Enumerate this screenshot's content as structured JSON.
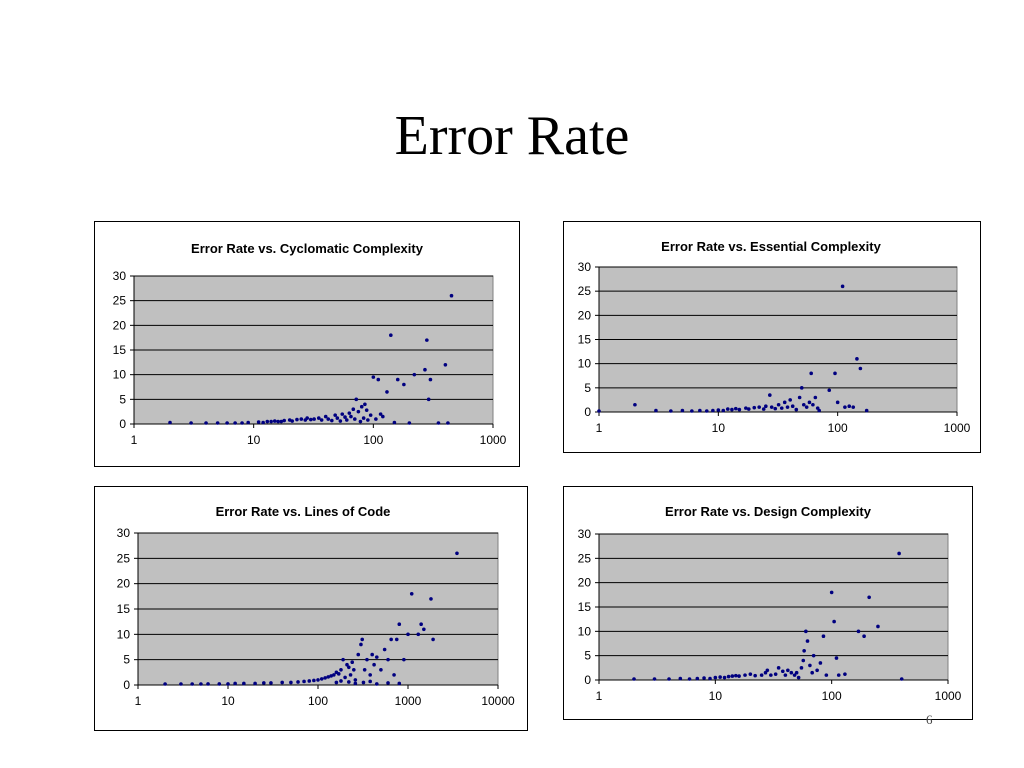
{
  "slide": {
    "title": "Error Rate",
    "page_number": "6"
  },
  "chart_data": [
    {
      "type": "scatter",
      "title": "Error Rate vs. Cyclomatic Complexity",
      "xlabel": "",
      "ylabel": "",
      "x_scale": "log",
      "xlim": [
        1,
        1000
      ],
      "ylim": [
        0,
        30
      ],
      "x_ticks": [
        1,
        10,
        100,
        1000
      ],
      "y_ticks": [
        0,
        5,
        10,
        15,
        20,
        25,
        30
      ],
      "x_tick_labels": [
        "1",
        "10",
        "100",
        "1000"
      ],
      "y_tick_labels": [
        "0",
        "5",
        "10",
        "15",
        "20",
        "25",
        "30"
      ],
      "plot_background": "#c0c0c0",
      "marker_color": "#000080",
      "gridlines": "horizontal",
      "points": [
        [
          2,
          0.3
        ],
        [
          3,
          0.2
        ],
        [
          4,
          0.2
        ],
        [
          5,
          0.2
        ],
        [
          6,
          0.2
        ],
        [
          7,
          0.1
        ],
        [
          8,
          0.2
        ],
        [
          9,
          0.3
        ],
        [
          11,
          0.4
        ],
        [
          12,
          0.3
        ],
        [
          13,
          0.5
        ],
        [
          14,
          0.5
        ],
        [
          15,
          0.6
        ],
        [
          16,
          0.5
        ],
        [
          17,
          0.5
        ],
        [
          18,
          0.7
        ],
        [
          20,
          0.8
        ],
        [
          21,
          0.6
        ],
        [
          23,
          0.9
        ],
        [
          25,
          1.0
        ],
        [
          27,
          0.8
        ],
        [
          28,
          1.2
        ],
        [
          30,
          0.9
        ],
        [
          32,
          1.0
        ],
        [
          35,
          1.2
        ],
        [
          37,
          0.8
        ],
        [
          40,
          1.5
        ],
        [
          42,
          1.0
        ],
        [
          45,
          0.7
        ],
        [
          48,
          1.8
        ],
        [
          50,
          1.2
        ],
        [
          53,
          0.6
        ],
        [
          55,
          2.0
        ],
        [
          58,
          1.4
        ],
        [
          60,
          0.8
        ],
        [
          63,
          2.2
        ],
        [
          65,
          1.5
        ],
        [
          68,
          3.0
        ],
        [
          70,
          1.0
        ],
        [
          72,
          5.0
        ],
        [
          75,
          2.5
        ],
        [
          78,
          0.5
        ],
        [
          80,
          3.5
        ],
        [
          83,
          1.2
        ],
        [
          85,
          4.0
        ],
        [
          88,
          2.8
        ],
        [
          90,
          0.8
        ],
        [
          95,
          1.8
        ],
        [
          100,
          9.5
        ],
        [
          105,
          1.0
        ],
        [
          110,
          9.0
        ],
        [
          115,
          2.0
        ],
        [
          120,
          1.5
        ],
        [
          130,
          6.5
        ],
        [
          140,
          18.0
        ],
        [
          160,
          9.0
        ],
        [
          180,
          8.0
        ],
        [
          220,
          10.0
        ],
        [
          270,
          11.0
        ],
        [
          280,
          17.0
        ],
        [
          300,
          9.0
        ],
        [
          290,
          5.0
        ],
        [
          400,
          12.0
        ],
        [
          450,
          26.0
        ],
        [
          150,
          0.3
        ],
        [
          200,
          0.2
        ],
        [
          350,
          0.1
        ],
        [
          420,
          0.2
        ]
      ]
    },
    {
      "type": "scatter",
      "title": "Error Rate vs. Essential Complexity",
      "xlabel": "",
      "ylabel": "",
      "x_scale": "log",
      "xlim": [
        1,
        1000
      ],
      "ylim": [
        0,
        30
      ],
      "x_ticks": [
        1,
        10,
        100,
        1000
      ],
      "y_ticks": [
        0,
        5,
        10,
        15,
        20,
        25,
        30
      ],
      "x_tick_labels": [
        "1",
        "10",
        "100",
        "1000"
      ],
      "y_tick_labels": [
        "0",
        "5",
        "10",
        "15",
        "20",
        "25",
        "30"
      ],
      "plot_background": "#c0c0c0",
      "marker_color": "#000080",
      "gridlines": "horizontal",
      "points": [
        [
          1,
          0.2
        ],
        [
          2,
          1.5
        ],
        [
          3,
          0.3
        ],
        [
          4,
          0.2
        ],
        [
          5,
          0.3
        ],
        [
          6,
          0.2
        ],
        [
          7,
          0.3
        ],
        [
          8,
          0.2
        ],
        [
          9,
          0.3
        ],
        [
          10,
          0.4
        ],
        [
          11,
          0.3
        ],
        [
          12,
          0.6
        ],
        [
          13,
          0.5
        ],
        [
          14,
          0.7
        ],
        [
          15,
          0.5
        ],
        [
          17,
          0.8
        ],
        [
          18,
          0.6
        ],
        [
          20,
          0.9
        ],
        [
          22,
          1.0
        ],
        [
          24,
          0.6
        ],
        [
          25,
          1.2
        ],
        [
          27,
          3.5
        ],
        [
          28,
          1.0
        ],
        [
          30,
          0.7
        ],
        [
          32,
          1.5
        ],
        [
          34,
          0.8
        ],
        [
          36,
          2.0
        ],
        [
          38,
          1.0
        ],
        [
          40,
          2.5
        ],
        [
          42,
          1.2
        ],
        [
          45,
          0.5
        ],
        [
          48,
          3.0
        ],
        [
          50,
          5.0
        ],
        [
          52,
          1.5
        ],
        [
          55,
          1.0
        ],
        [
          58,
          2.0
        ],
        [
          60,
          8.0
        ],
        [
          62,
          1.5
        ],
        [
          65,
          3.0
        ],
        [
          68,
          0.8
        ],
        [
          70,
          0.3
        ],
        [
          85,
          4.5
        ],
        [
          95,
          8.0
        ],
        [
          100,
          2.0
        ],
        [
          110,
          26.0
        ],
        [
          115,
          1.0
        ],
        [
          125,
          1.2
        ],
        [
          135,
          1.0
        ],
        [
          145,
          11.0
        ],
        [
          155,
          9.0
        ],
        [
          175,
          0.3
        ]
      ]
    },
    {
      "type": "scatter",
      "title": "Error Rate vs. Lines of Code",
      "xlabel": "",
      "ylabel": "",
      "x_scale": "log",
      "xlim": [
        1,
        10000
      ],
      "ylim": [
        0,
        30
      ],
      "x_ticks": [
        1,
        10,
        100,
        1000,
        10000
      ],
      "y_ticks": [
        0,
        5,
        10,
        15,
        20,
        25,
        30
      ],
      "x_tick_labels": [
        "1",
        "10",
        "100",
        "1000",
        "10000"
      ],
      "y_tick_labels": [
        "0",
        "5",
        "10",
        "15",
        "20",
        "25",
        "30"
      ],
      "plot_background": "#c0c0c0",
      "marker_color": "#000080",
      "gridlines": "horizontal",
      "points": [
        [
          2,
          0.1
        ],
        [
          3,
          0.1
        ],
        [
          4,
          0.1
        ],
        [
          5,
          0.1
        ],
        [
          6,
          0.2
        ],
        [
          8,
          0.2
        ],
        [
          10,
          0.2
        ],
        [
          12,
          0.3
        ],
        [
          15,
          0.3
        ],
        [
          20,
          0.3
        ],
        [
          25,
          0.4
        ],
        [
          30,
          0.4
        ],
        [
          40,
          0.5
        ],
        [
          50,
          0.5
        ],
        [
          60,
          0.6
        ],
        [
          70,
          0.7
        ],
        [
          80,
          0.8
        ],
        [
          90,
          0.9
        ],
        [
          100,
          1.0
        ],
        [
          110,
          1.2
        ],
        [
          120,
          1.4
        ],
        [
          130,
          1.6
        ],
        [
          140,
          1.8
        ],
        [
          150,
          2.0
        ],
        [
          160,
          2.5
        ],
        [
          170,
          2.2
        ],
        [
          180,
          3.0
        ],
        [
          190,
          5.0
        ],
        [
          200,
          1.5
        ],
        [
          210,
          4.0
        ],
        [
          220,
          3.5
        ],
        [
          230,
          2.0
        ],
        [
          240,
          4.5
        ],
        [
          250,
          3.0
        ],
        [
          260,
          1.0
        ],
        [
          280,
          6.0
        ],
        [
          300,
          8.0
        ],
        [
          310,
          9.0
        ],
        [
          330,
          3.0
        ],
        [
          350,
          5.0
        ],
        [
          380,
          2.0
        ],
        [
          400,
          6.0
        ],
        [
          420,
          4.0
        ],
        [
          450,
          5.5
        ],
        [
          500,
          3.0
        ],
        [
          550,
          7.0
        ],
        [
          600,
          5.0
        ],
        [
          650,
          9.0
        ],
        [
          700,
          2.0
        ],
        [
          750,
          9.0
        ],
        [
          800,
          12.0
        ],
        [
          900,
          5.0
        ],
        [
          1000,
          10.0
        ],
        [
          1100,
          18.0
        ],
        [
          1300,
          10.0
        ],
        [
          1400,
          12.0
        ],
        [
          1500,
          11.0
        ],
        [
          1800,
          17.0
        ],
        [
          1900,
          9.0
        ],
        [
          3500,
          26.0
        ],
        [
          160,
          0.5
        ],
        [
          180,
          0.8
        ],
        [
          220,
          0.6
        ],
        [
          260,
          0.3
        ],
        [
          320,
          0.5
        ],
        [
          380,
          0.7
        ],
        [
          450,
          0.2
        ],
        [
          600,
          0.4
        ],
        [
          800,
          0.3
        ]
      ]
    },
    {
      "type": "scatter",
      "title": "Error Rate vs. Design Complexity",
      "xlabel": "",
      "ylabel": "",
      "x_scale": "log",
      "xlim": [
        1,
        1000
      ],
      "ylim": [
        0,
        30
      ],
      "x_ticks": [
        1,
        10,
        100,
        1000
      ],
      "y_ticks": [
        0,
        5,
        10,
        15,
        20,
        25,
        30
      ],
      "x_tick_labels": [
        "1",
        "10",
        "100",
        "1000"
      ],
      "y_tick_labels": [
        "0",
        "5",
        "10",
        "15",
        "20",
        "25",
        "30"
      ],
      "plot_background": "#c0c0c0",
      "marker_color": "#000080",
      "gridlines": "horizontal",
      "points": [
        [
          2,
          0.2
        ],
        [
          3,
          0.2
        ],
        [
          4,
          0.2
        ],
        [
          5,
          0.3
        ],
        [
          6,
          0.2
        ],
        [
          7,
          0.3
        ],
        [
          8,
          0.4
        ],
        [
          9,
          0.3
        ],
        [
          10,
          0.5
        ],
        [
          11,
          0.6
        ],
        [
          12,
          0.5
        ],
        [
          13,
          0.7
        ],
        [
          14,
          0.8
        ],
        [
          15,
          0.9
        ],
        [
          16,
          0.8
        ],
        [
          18,
          1.0
        ],
        [
          20,
          1.2
        ],
        [
          22,
          0.9
        ],
        [
          25,
          1.0
        ],
        [
          27,
          1.5
        ],
        [
          28,
          2.0
        ],
        [
          30,
          1.0
        ],
        [
          33,
          1.2
        ],
        [
          35,
          2.5
        ],
        [
          38,
          1.8
        ],
        [
          40,
          1.0
        ],
        [
          42,
          2.0
        ],
        [
          45,
          1.5
        ],
        [
          48,
          1.0
        ],
        [
          50,
          1.5
        ],
        [
          52,
          0.5
        ],
        [
          55,
          2.5
        ],
        [
          57,
          4.0
        ],
        [
          58,
          6.0
        ],
        [
          60,
          10.0
        ],
        [
          62,
          8.0
        ],
        [
          65,
          3.0
        ],
        [
          68,
          1.5
        ],
        [
          70,
          5.0
        ],
        [
          75,
          2.0
        ],
        [
          80,
          3.5
        ],
        [
          85,
          9.0
        ],
        [
          90,
          1.0
        ],
        [
          100,
          18.0
        ],
        [
          105,
          12.0
        ],
        [
          110,
          4.5
        ],
        [
          115,
          1.0
        ],
        [
          130,
          1.2
        ],
        [
          170,
          10.0
        ],
        [
          190,
          9.0
        ],
        [
          210,
          17.0
        ],
        [
          250,
          11.0
        ],
        [
          380,
          26.0
        ],
        [
          400,
          0.2
        ]
      ]
    }
  ]
}
